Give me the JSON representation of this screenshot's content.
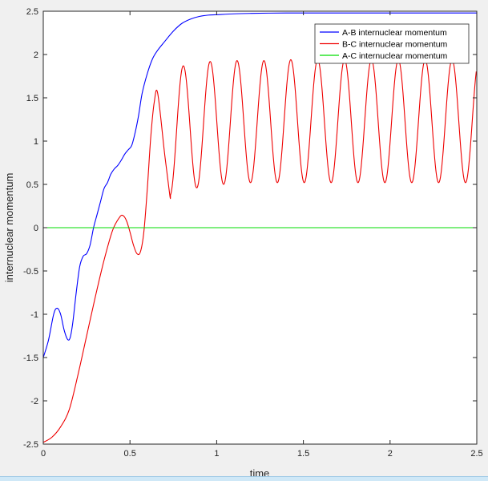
{
  "chart_data": {
    "type": "line",
    "title": "",
    "xlabel": "time",
    "ylabel": "internuclear momentum",
    "xlim": [
      0,
      2.5
    ],
    "ylim": [
      -2.5,
      2.5
    ],
    "x_ticks": [
      "0",
      "0.5",
      "1",
      "1.5",
      "2",
      "2.5"
    ],
    "y_ticks": [
      "2.5",
      "2",
      "1.5",
      "1",
      "0.5",
      "0",
      "-0.5",
      "-1",
      "-1.5",
      "-2",
      "-2.5"
    ],
    "grid": false,
    "legend_position": "top-right",
    "series": [
      {
        "name": "A-B internuclear momentum",
        "color": "#0000ff",
        "x": [
          0,
          0.03,
          0.06,
          0.08,
          0.1,
          0.12,
          0.14,
          0.155,
          0.17,
          0.19,
          0.21,
          0.23,
          0.25,
          0.27,
          0.29,
          0.31,
          0.33,
          0.35,
          0.37,
          0.39,
          0.41,
          0.43,
          0.45,
          0.47,
          0.49,
          0.51,
          0.53,
          0.55,
          0.57,
          0.6,
          0.63,
          0.66,
          0.7,
          0.75,
          0.8,
          0.85,
          0.9,
          0.95,
          1.0,
          1.1,
          1.2,
          1.3,
          1.4,
          1.5,
          1.7,
          1.9,
          2.1,
          2.3,
          2.5
        ],
        "y": [
          -1.5,
          -1.3,
          -1.0,
          -0.93,
          -1.0,
          -1.18,
          -1.29,
          -1.27,
          -1.1,
          -0.75,
          -0.45,
          -0.33,
          -0.3,
          -0.2,
          0.0,
          0.15,
          0.3,
          0.45,
          0.52,
          0.62,
          0.68,
          0.72,
          0.78,
          0.85,
          0.9,
          0.95,
          1.1,
          1.3,
          1.55,
          1.78,
          1.95,
          2.05,
          2.15,
          2.27,
          2.36,
          2.41,
          2.44,
          2.455,
          2.46,
          2.47,
          2.475,
          2.478,
          2.48,
          2.48,
          2.48,
          2.48,
          2.48,
          2.48,
          2.48
        ]
      },
      {
        "name": "B-C internuclear momentum",
        "color": "#ee0000",
        "x": [
          0,
          0.05,
          0.1,
          0.15,
          0.2,
          0.25,
          0.3,
          0.35,
          0.4,
          0.44,
          0.46,
          0.48,
          0.5,
          0.52,
          0.54,
          0.56,
          0.58,
          0.6,
          0.62,
          0.64,
          0.66,
          0.7,
          0.73
        ],
        "y": [
          -2.48,
          -2.42,
          -2.3,
          -2.1,
          -1.7,
          -1.25,
          -0.8,
          -0.38,
          -0.03,
          0.12,
          0.14,
          0.08,
          -0.05,
          -0.2,
          -0.3,
          -0.28,
          -0.05,
          0.45,
          1.05,
          1.45,
          1.55,
          0.85,
          0.37
        ],
        "oscillation": {
          "start_x": 0.73,
          "period": 0.155,
          "minima": [
            0.37,
            0.46,
            0.5,
            0.52,
            0.52,
            0.52,
            0.52,
            0.52,
            0.52,
            0.52,
            0.52,
            0.52,
            0.52
          ],
          "maxima": [
            1.87,
            1.92,
            1.93,
            1.93,
            1.94,
            1.94,
            1.94,
            1.94,
            1.94,
            1.94,
            1.94,
            1.94
          ]
        }
      },
      {
        "name": "A-C internuclear momentum",
        "color": "#00dd00",
        "x": [
          0,
          2.5
        ],
        "y": [
          0,
          0
        ]
      }
    ]
  }
}
